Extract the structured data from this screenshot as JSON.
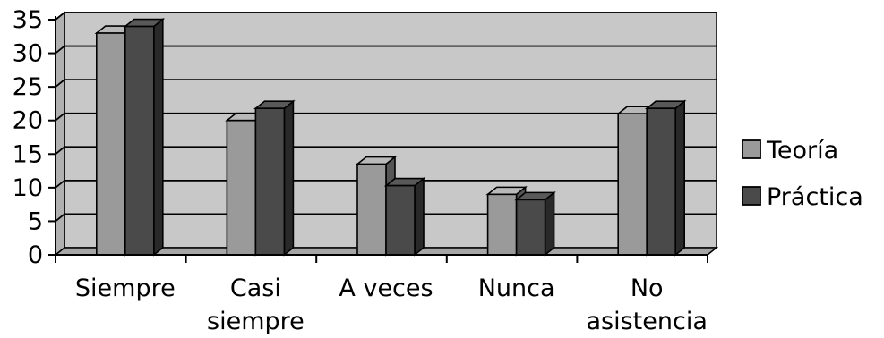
{
  "chart_data": {
    "type": "bar",
    "categories": [
      "Siempre",
      "Casi siempre",
      "A veces",
      "Nunca",
      "No asistencia"
    ],
    "category_lines": [
      [
        "Siempre"
      ],
      [
        "Casi",
        "siempre"
      ],
      [
        "A veces"
      ],
      [
        "Nunca"
      ],
      [
        "No",
        "asistencia"
      ]
    ],
    "series": [
      {
        "name": "Teoría",
        "values": [
          33,
          20,
          13.5,
          9,
          21
        ],
        "color": "#9a9a9a"
      },
      {
        "name": "Práctica",
        "values": [
          34,
          21.8,
          10.3,
          8.2,
          21.8
        ],
        "color": "#4a4a4a"
      }
    ],
    "yticks": [
      "0",
      "5",
      "10",
      "15",
      "20",
      "25",
      "30",
      "35"
    ],
    "ylim": [
      0,
      35
    ],
    "grid": true,
    "legend": "right",
    "plot_background": "#c8c8c8",
    "title": "",
    "xlabel": "",
    "ylabel": ""
  }
}
